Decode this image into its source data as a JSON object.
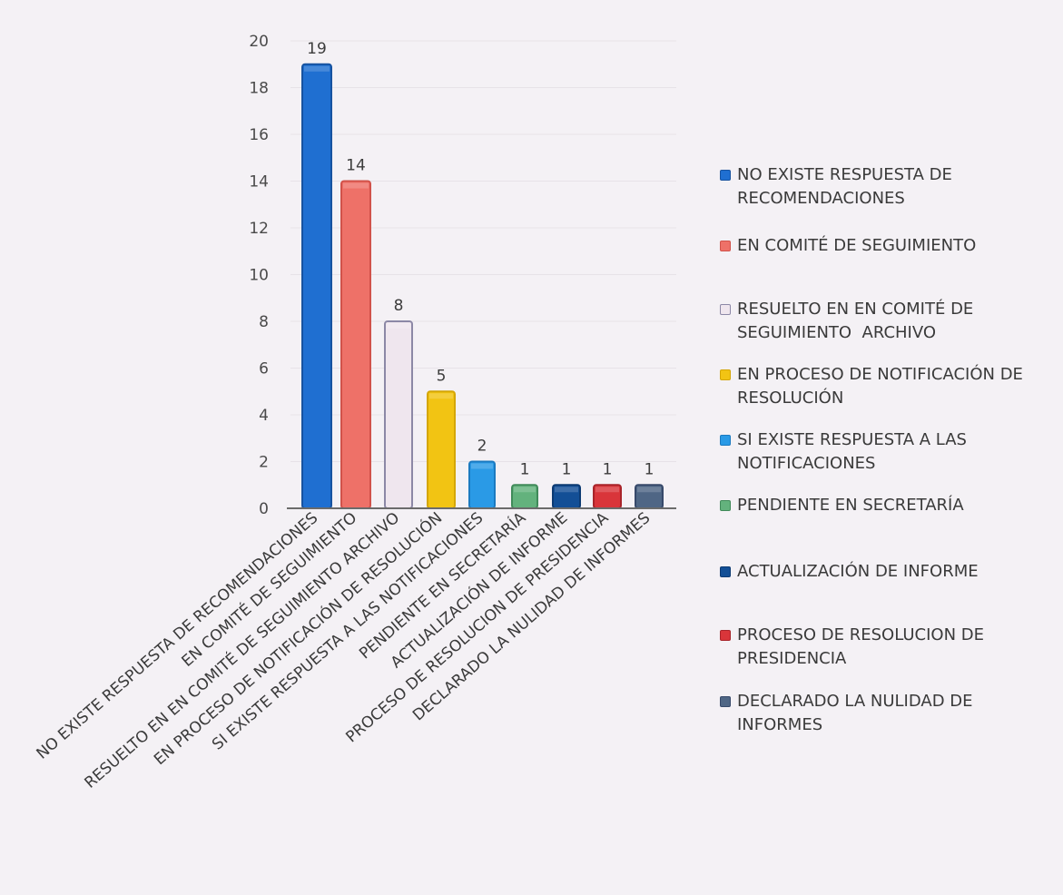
{
  "chart_data": {
    "type": "bar",
    "title": "",
    "xlabel": "",
    "ylabel": "",
    "ylim": [
      0,
      20
    ],
    "yticks": [
      0,
      2,
      4,
      6,
      8,
      10,
      12,
      14,
      16,
      18,
      20
    ],
    "grid": true,
    "legend_placement": "right",
    "categories": [
      "NO EXISTE RESPUESTA DE RECOMENDACIONES",
      "EN COMITÉ DE SEGUIMIENTO",
      "RESUELTO EN EN COMITÉ DE SEGUIMIENTO  ARCHIVO",
      "EN PROCESO DE NOTIFICACIÓN DE RESOLUCIÓN",
      "SI EXISTE RESPUESTA A LAS NOTIFICACIONES",
      "PENDIENTE EN SECRETARÍA",
      "ACTUALIZACIÓN DE INFORME",
      "PROCESO DE RESOLUCION DE PRESIDENCIA",
      "DECLARADO LA NULIDAD DE INFORMES"
    ],
    "values": [
      19,
      14,
      8,
      5,
      2,
      1,
      1,
      1,
      1
    ],
    "colors": [
      "#1f6fd1",
      "#ee7168",
      "#efe6ee",
      "#f2c413",
      "#2a9ae6",
      "#63b27d",
      "#134f96",
      "#d9353a",
      "#4f6685"
    ],
    "outline_colors": [
      "#1753a0",
      "#d1524a",
      "#8c88a6",
      "#d4a606",
      "#1b7ac0",
      "#408a59",
      "#0c3a72",
      "#a8242a",
      "#37496a"
    ],
    "legend": [
      "NO EXISTE RESPUESTA DE\nRECOMENDACIONES",
      "EN COMITÉ DE SEGUIMIENTO",
      "RESUELTO EN EN COMITÉ DE\nSEGUIMIENTO  ARCHIVO",
      "EN PROCESO DE NOTIFICACIÓN DE\nRESOLUCIÓN",
      "SI EXISTE RESPUESTA A LAS\nNOTIFICACIONES",
      "PENDIENTE EN SECRETARÍA",
      "ACTUALIZACIÓN DE INFORME",
      "PROCESO DE RESOLUCION DE\nPRESIDENCIA",
      "DECLARADO LA NULIDAD DE\nINFORMES"
    ]
  }
}
